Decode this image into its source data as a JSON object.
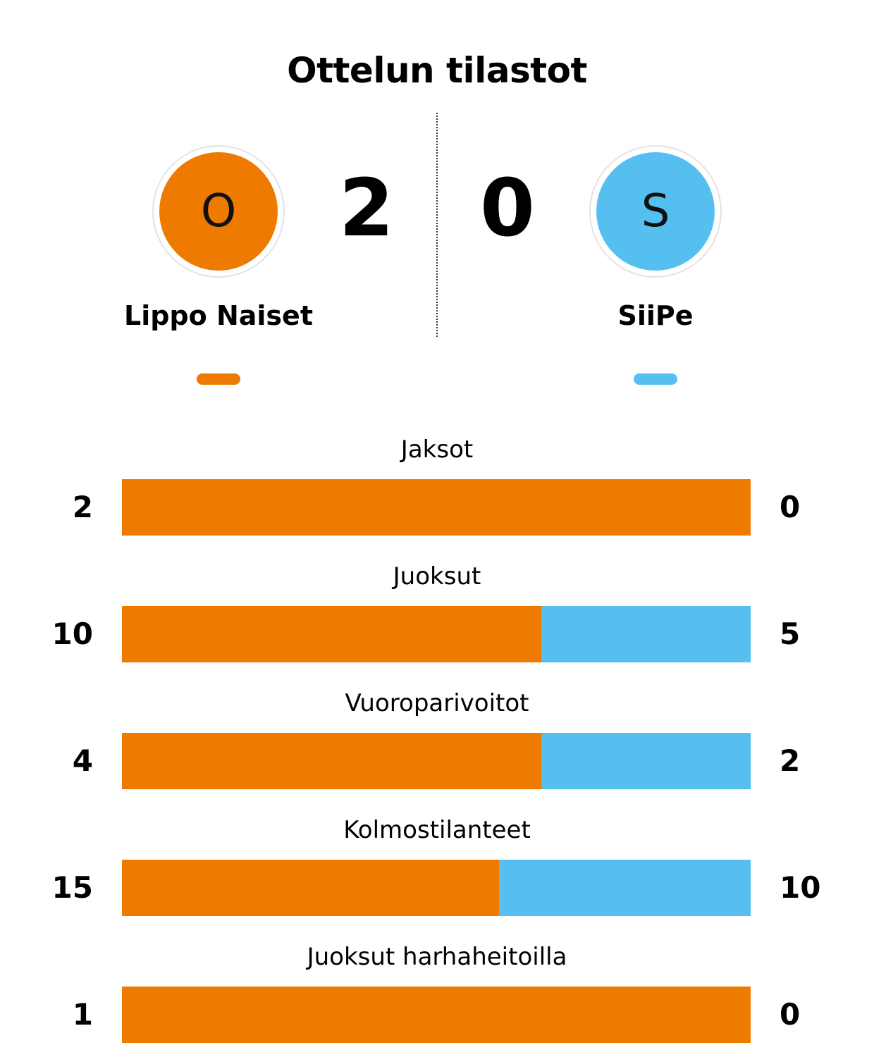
{
  "title": "Ottelun tilastot",
  "colors": {
    "home": "#EE7A00",
    "away": "#55C0EF"
  },
  "home_team": {
    "name": "Lippo Naiset",
    "initial": "O",
    "score": "2"
  },
  "away_team": {
    "name": "SiiPe",
    "initial": "S",
    "score": "0"
  },
  "chart_data": {
    "type": "bar",
    "orientation": "horizontal-stacked-percent",
    "categories": [
      "Jaksot",
      "Juoksut",
      "Vuoroparivoitot",
      "Kolmostilanteet",
      "Juoksut harhaheitoilla"
    ],
    "series": [
      {
        "name": "Lippo Naiset",
        "values": [
          2,
          10,
          4,
          15,
          1
        ]
      },
      {
        "name": "SiiPe",
        "values": [
          0,
          5,
          2,
          10,
          0
        ]
      }
    ]
  }
}
